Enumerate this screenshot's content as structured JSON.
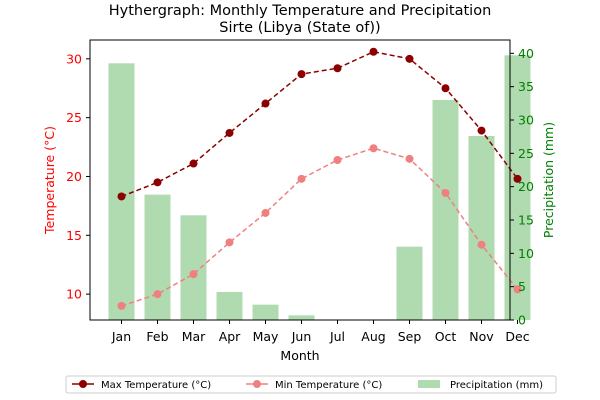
{
  "chart_data": {
    "type": "bar+line",
    "title_line1": "Hythergraph: Monthly Temperature and Precipitation",
    "title_line2": "Sirte (Libya (State of))",
    "xlabel": "Month",
    "ylabel_left": "Temperature (°C)",
    "ylabel_right": "Precipitation (mm)",
    "categories": [
      "Jan",
      "Feb",
      "Mar",
      "Apr",
      "May",
      "Jun",
      "Jul",
      "Aug",
      "Sep",
      "Oct",
      "Nov",
      "Dec"
    ],
    "ylim_left": [
      7.8,
      31.6
    ],
    "ylim_right": [
      0,
      42
    ],
    "yticks_left": [
      10,
      15,
      20,
      25,
      30
    ],
    "yticks_right": [
      0,
      5,
      10,
      15,
      20,
      25,
      30,
      35,
      40
    ],
    "series": [
      {
        "name": "Max Temperature (°C)",
        "kind": "line",
        "axis": "left",
        "color": "#8b0000",
        "linestyle": "dashed",
        "values": [
          18.3,
          19.5,
          21.1,
          23.7,
          26.2,
          28.7,
          29.2,
          30.6,
          30.0,
          27.5,
          23.9,
          19.8
        ]
      },
      {
        "name": "Min Temperature (°C)",
        "kind": "line",
        "axis": "left",
        "color": "#f08080",
        "linestyle": "dashed",
        "values": [
          9.0,
          10.0,
          11.7,
          14.4,
          16.9,
          19.8,
          21.4,
          22.4,
          21.5,
          18.6,
          14.2,
          10.4
        ]
      },
      {
        "name": "Precipitation (mm)",
        "kind": "bar",
        "axis": "right",
        "color": "#8fcb8f",
        "values": [
          38.5,
          18.8,
          15.7,
          4.2,
          2.3,
          0.7,
          0.0,
          0.0,
          11.0,
          33.0,
          27.6,
          39.7
        ]
      }
    ],
    "left_axis_color": "#ff0000",
    "right_axis_color": "#008000",
    "legend": "bottom-center"
  }
}
